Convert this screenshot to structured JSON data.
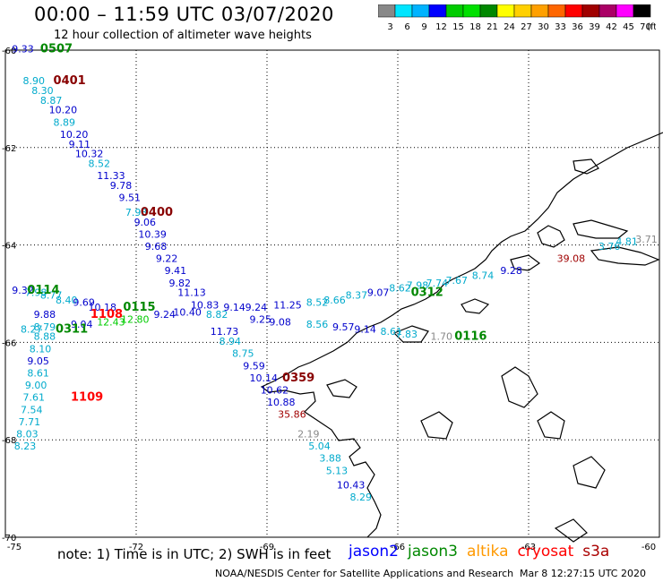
{
  "header": {
    "title": "00:00 – 11:59 UTC 03/07/2020",
    "subtitle": "12 hour collection of altimeter wave heights"
  },
  "legend": {
    "labels": [
      "3",
      "6",
      "9",
      "12",
      "15",
      "18",
      "21",
      "24",
      "27",
      "30",
      "33",
      "36",
      "39",
      "42",
      "45",
      "70"
    ],
    "unit": "(ft)",
    "colors": [
      "#888888",
      "#00e5ff",
      "#00b3ff",
      "#0000ff",
      "#00cc00",
      "#00e000",
      "#008800",
      "#ffff00",
      "#ffd000",
      "#ffa000",
      "#ff6600",
      "#ff0000",
      "#a00000",
      "#aa0066",
      "#ff00ff",
      "#000000"
    ]
  },
  "axes": {
    "lon_labels": [
      "-75",
      "-72",
      "-69",
      "-66",
      "-63",
      "-60"
    ],
    "lat_labels": [
      "-60",
      "-62",
      "-64",
      "-66",
      "-68",
      "-70"
    ],
    "lon_range": [
      -75,
      -60
    ],
    "lat_range": [
      -70,
      -60
    ],
    "grid": "dotted"
  },
  "tracks": [
    {
      "sat": "jason3",
      "time": "0507",
      "time_lon": -74.2,
      "time_lat": -60.05,
      "time_color": "#008800",
      "points": [
        {
          "v": "9.33",
          "lon": -74.85,
          "lat": -60.05,
          "c": "#0000cc"
        }
      ]
    },
    {
      "sat": "cryosat",
      "time": "0401",
      "time_lon": -73.9,
      "time_lat": -60.7,
      "time_color": "#880000",
      "points": [
        {
          "v": "8.90",
          "lon": -74.6,
          "lat": -60.7,
          "c": "#00aacc"
        },
        {
          "v": "8.30",
          "lon": -74.4,
          "lat": -60.9,
          "c": "#00aacc"
        },
        {
          "v": "8.87",
          "lon": -74.2,
          "lat": -61.1,
          "c": "#00aacc"
        },
        {
          "v": "10.20",
          "lon": -74.0,
          "lat": -61.3,
          "c": "#0000cc"
        },
        {
          "v": "8.89",
          "lon": -73.9,
          "lat": -61.55,
          "c": "#00aacc"
        },
        {
          "v": "10.20",
          "lon": -73.75,
          "lat": -61.8,
          "c": "#0000cc"
        },
        {
          "v": "9.11",
          "lon": -73.55,
          "lat": -62.0,
          "c": "#0000cc"
        },
        {
          "v": "10.32",
          "lon": -73.4,
          "lat": -62.2,
          "c": "#0000cc"
        },
        {
          "v": "8.52",
          "lon": -73.1,
          "lat": -62.4,
          "c": "#00aacc"
        },
        {
          "v": "11.33",
          "lon": -72.9,
          "lat": -62.65,
          "c": "#0000cc"
        },
        {
          "v": "9.78",
          "lon": -72.6,
          "lat": -62.85,
          "c": "#0000cc"
        },
        {
          "v": "9.51",
          "lon": -72.4,
          "lat": -63.1,
          "c": "#0000cc"
        }
      ]
    },
    {
      "sat": "cryosat",
      "time": "0400",
      "time_lon": -71.9,
      "time_lat": -63.4,
      "time_color": "#880000",
      "points": [
        {
          "v": "7.93",
          "lon": -72.25,
          "lat": -63.4,
          "c": "#00aacc"
        },
        {
          "v": "9.06",
          "lon": -72.05,
          "lat": -63.6,
          "c": "#0000cc"
        },
        {
          "v": "10.39",
          "lon": -71.95,
          "lat": -63.85,
          "c": "#0000cc"
        },
        {
          "v": "9.68",
          "lon": -71.8,
          "lat": -64.1,
          "c": "#0000cc"
        },
        {
          "v": "9.22",
          "lon": -71.55,
          "lat": -64.35,
          "c": "#0000cc"
        },
        {
          "v": "9.41",
          "lon": -71.35,
          "lat": -64.6,
          "c": "#0000cc"
        },
        {
          "v": "9.82",
          "lon": -71.25,
          "lat": -64.85,
          "c": "#0000cc"
        },
        {
          "v": "11.13",
          "lon": -71.05,
          "lat": -65.05,
          "c": "#0000cc"
        },
        {
          "v": "10.83",
          "lon": -70.75,
          "lat": -65.3,
          "c": "#0000cc"
        },
        {
          "v": "11.73",
          "lon": -70.3,
          "lat": -65.85,
          "c": "#0000cc"
        },
        {
          "v": "8.94",
          "lon": -70.1,
          "lat": -66.05,
          "c": "#00aacc"
        },
        {
          "v": "8.75",
          "lon": -69.8,
          "lat": -66.3,
          "c": "#00aacc"
        },
        {
          "v": "9.59",
          "lon": -69.55,
          "lat": -66.55,
          "c": "#0000cc"
        },
        {
          "v": "10.14",
          "lon": -69.4,
          "lat": -66.8,
          "c": "#0000cc"
        },
        {
          "v": "10.62",
          "lon": -69.15,
          "lat": -67.05,
          "c": "#0000cc"
        },
        {
          "v": "10.88",
          "lon": -69.0,
          "lat": -67.3,
          "c": "#0000cc"
        },
        {
          "v": "35.86",
          "lon": -68.75,
          "lat": -67.55,
          "c": "#a00000"
        }
      ]
    },
    {
      "sat": "cryosat",
      "time": "0359",
      "time_lon": -68.65,
      "time_lat": -66.8,
      "time_color": "#880000",
      "points": [
        {
          "v": "2.19",
          "lon": -68.3,
          "lat": -67.95,
          "c": "#888888"
        },
        {
          "v": "5.04",
          "lon": -68.05,
          "lat": -68.2,
          "c": "#00aacc"
        },
        {
          "v": "3.88",
          "lon": -67.8,
          "lat": -68.45,
          "c": "#00aacc"
        },
        {
          "v": "5.13",
          "lon": -67.65,
          "lat": -68.7,
          "c": "#00aacc"
        },
        {
          "v": "10.43",
          "lon": -67.4,
          "lat": -69.0,
          "c": "#0000cc"
        },
        {
          "v": "8.29",
          "lon": -67.1,
          "lat": -69.25,
          "c": "#00aacc"
        }
      ]
    },
    {
      "sat": "jason3",
      "time": "0114",
      "time_lon": -74.5,
      "time_lat": -65.0,
      "time_color": "#008800",
      "points": [
        {
          "v": "9.32",
          "lon": -74.85,
          "lat": -65.0,
          "c": "#0000cc"
        },
        {
          "v": "7.98",
          "lon": -74.55,
          "lat": -65.05,
          "c": "#00aacc"
        },
        {
          "v": "8.77",
          "lon": -74.2,
          "lat": -65.1,
          "c": "#00aacc"
        },
        {
          "v": "8.40",
          "lon": -73.85,
          "lat": -65.2,
          "c": "#00aacc"
        },
        {
          "v": "9.69",
          "lon": -73.45,
          "lat": -65.25,
          "c": "#0000cc"
        },
        {
          "v": "10.18",
          "lon": -73.1,
          "lat": -65.35,
          "c": "#0000cc"
        },
        {
          "v": "9.88",
          "lon": -74.35,
          "lat": -65.5,
          "c": "#0000cc"
        },
        {
          "v": "9.04",
          "lon": -73.5,
          "lat": -65.7,
          "c": "#0000cc"
        },
        {
          "v": "12.43",
          "lon": -72.9,
          "lat": -65.65,
          "c": "#00cc00"
        },
        {
          "v": "12.80",
          "lon": -72.35,
          "lat": -65.6,
          "c": "#00cc00"
        },
        {
          "v": "9.24",
          "lon": -71.6,
          "lat": -65.5,
          "c": "#0000cc"
        },
        {
          "v": "10.40",
          "lon": -71.15,
          "lat": -65.45,
          "c": "#0000cc"
        },
        {
          "v": "8.82",
          "lon": -70.4,
          "lat": -65.5,
          "c": "#00aacc"
        },
        {
          "v": "9.14",
          "lon": -70.0,
          "lat": -65.35,
          "c": "#0000cc"
        },
        {
          "v": "9.24",
          "lon": -69.5,
          "lat": -65.35,
          "c": "#0000cc"
        },
        {
          "v": "9.25",
          "lon": -69.4,
          "lat": -65.6,
          "c": "#0000cc"
        },
        {
          "v": "9.08",
          "lon": -68.95,
          "lat": -65.65,
          "c": "#0000cc"
        },
        {
          "v": "11.25",
          "lon": -68.85,
          "lat": -65.3,
          "c": "#0000cc"
        },
        {
          "v": "8.52",
          "lon": -68.1,
          "lat": -65.25,
          "c": "#00aacc"
        },
        {
          "v": "8.56",
          "lon": -68.1,
          "lat": -65.7,
          "c": "#00aacc"
        },
        {
          "v": "8.66",
          "lon": -67.7,
          "lat": -65.2,
          "c": "#00aacc"
        },
        {
          "v": "9.57",
          "lon": -67.5,
          "lat": -65.75,
          "c": "#0000cc"
        },
        {
          "v": "8.37",
          "lon": -67.2,
          "lat": -65.1,
          "c": "#00aacc"
        },
        {
          "v": "9.14",
          "lon": -67.0,
          "lat": -65.8,
          "c": "#0000cc"
        },
        {
          "v": "9.07",
          "lon": -66.7,
          "lat": -65.05,
          "c": "#0000cc"
        },
        {
          "v": "8.61",
          "lon": -66.4,
          "lat": -65.85,
          "c": "#00aacc"
        },
        {
          "v": "7.83",
          "lon": -66.05,
          "lat": -65.9,
          "c": "#00aacc"
        }
      ]
    },
    {
      "sat": "jason3",
      "time": "0115",
      "time_lon": -72.3,
      "time_lat": -65.35,
      "time_color": "#008800",
      "points": []
    },
    {
      "sat": "jason3",
      "time": "0312",
      "time_lon": -65.7,
      "time_lat": -65.05,
      "time_color": "#008800",
      "points": [
        {
          "v": "8.62",
          "lon": -66.2,
          "lat": -64.95,
          "c": "#00aacc"
        },
        {
          "v": "7.98",
          "lon": -65.8,
          "lat": -64.9,
          "c": "#00aacc"
        },
        {
          "v": "7.74",
          "lon": -65.35,
          "lat": -64.85,
          "c": "#00aacc"
        },
        {
          "v": "7.67",
          "lon": -64.9,
          "lat": -64.8,
          "c": "#00aacc"
        },
        {
          "v": "8.74",
          "lon": -64.3,
          "lat": -64.7,
          "c": "#00aacc"
        },
        {
          "v": "9.28",
          "lon": -63.65,
          "lat": -64.6,
          "c": "#0000cc"
        },
        {
          "v": "39.08",
          "lon": -62.35,
          "lat": -64.35,
          "c": "#a00000"
        },
        {
          "v": "3.76",
          "lon": -61.4,
          "lat": -64.1,
          "c": "#00aacc"
        },
        {
          "v": "4.81",
          "lon": -61.0,
          "lat": -64.0,
          "c": "#00aacc"
        },
        {
          "v": "3.71",
          "lon": -60.55,
          "lat": -63.95,
          "c": "#888888"
        }
      ]
    },
    {
      "sat": "jason3",
      "time": "0116",
      "time_lon": -64.7,
      "time_lat": -65.95,
      "time_color": "#008800",
      "points": [
        {
          "v": "1.70",
          "lon": -65.25,
          "lat": -65.95,
          "c": "#888888"
        }
      ]
    },
    {
      "sat": "cryosat",
      "time": "1108",
      "time_lon": -73.05,
      "time_lat": -65.5,
      "time_color": "#ff0000",
      "points": [
        {
          "v": "8.27",
          "lon": -74.65,
          "lat": -65.8,
          "c": "#00aacc"
        },
        {
          "v": "8.79",
          "lon": -74.35,
          "lat": -65.75,
          "c": "#00aacc"
        },
        {
          "v": "8.88",
          "lon": -74.35,
          "lat": -65.95,
          "c": "#00aacc"
        },
        {
          "v": "8.10",
          "lon": -74.45,
          "lat": -66.2,
          "c": "#00aacc"
        },
        {
          "v": "9.05",
          "lon": -74.5,
          "lat": -66.45,
          "c": "#0000cc"
        },
        {
          "v": "8.61",
          "lon": -74.5,
          "lat": -66.7,
          "c": "#00aacc"
        },
        {
          "v": "9.00",
          "lon": -74.55,
          "lat": -66.95,
          "c": "#00aacc"
        },
        {
          "v": "7.61",
          "lon": -74.6,
          "lat": -67.2,
          "c": "#00aacc"
        },
        {
          "v": "7.54",
          "lon": -74.65,
          "lat": -67.45,
          "c": "#00aacc"
        },
        {
          "v": "7.71",
          "lon": -74.7,
          "lat": -67.7,
          "c": "#00aacc"
        },
        {
          "v": "8.03",
          "lon": -74.75,
          "lat": -67.95,
          "c": "#00aacc"
        },
        {
          "v": "8.23",
          "lon": -74.8,
          "lat": -68.2,
          "c": "#00aacc"
        }
      ]
    },
    {
      "sat": "jason3",
      "time": "0311",
      "time_lon": -73.85,
      "time_lat": -65.8,
      "time_color": "#008800",
      "points": []
    },
    {
      "sat": "cryosat",
      "time": "1109",
      "time_lon": -73.5,
      "time_lat": -67.2,
      "time_color": "#ff0000",
      "points": []
    }
  ],
  "footer": {
    "note": "note:  1) Time is in UTC;  2) SWH is in feet",
    "satellites": [
      {
        "name": "jason2",
        "color": "#0000ff"
      },
      {
        "name": "jason3",
        "color": "#008800"
      },
      {
        "name": "altika",
        "color": "#ff9900"
      },
      {
        "name": "cryosat",
        "color": "#ff0000"
      },
      {
        "name": "s3a",
        "color": "#aa0000"
      }
    ],
    "credit": "NOAA/NESDIS Center for Satellite Applications and Research",
    "timestamp": "Mar  8 12:27:15 UTC 2020"
  }
}
